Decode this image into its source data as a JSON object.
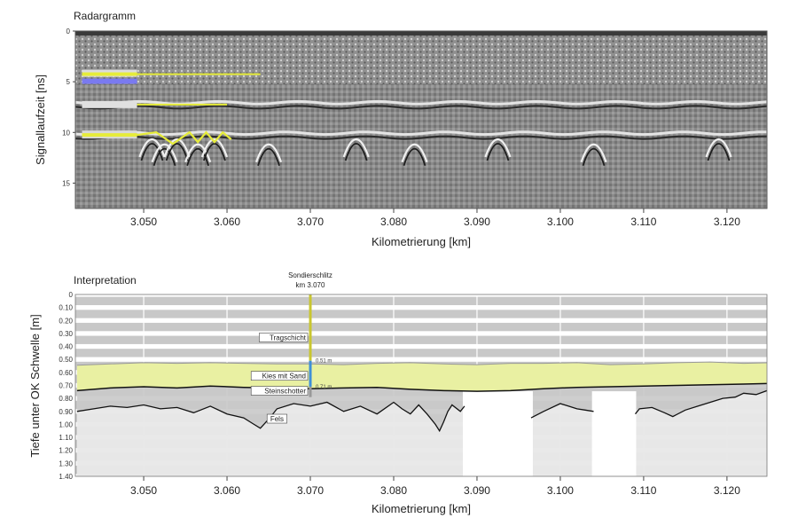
{
  "chart_data": [
    {
      "type": "heatmap",
      "title": "Radargramm",
      "xlabel": "Kilometrierung [km]",
      "ylabel": "Signallaufzeit [ns]",
      "xlim": [
        3.0418,
        3.1248
      ],
      "x_ticks": [
        "3.050",
        "3.060",
        "3.070",
        "3.080",
        "3.090",
        "3.100",
        "3.110",
        "3.120"
      ],
      "x_tick_values": [
        3.05,
        3.06,
        3.07,
        3.08,
        3.09,
        3.1,
        3.11,
        3.12
      ],
      "ylim": [
        0,
        35
      ],
      "y_ticks": [
        "0",
        "5",
        "10",
        "15"
      ],
      "y_tick_values": [
        0,
        10,
        20,
        30
      ],
      "colormap": "grayscale",
      "reflectors": [
        {
          "name": "upper",
          "depth": 14.5
        },
        {
          "name": "lower",
          "depth": 20.5
        }
      ],
      "hyperbolas": [
        3.051,
        3.0525,
        3.054,
        3.0565,
        3.0585,
        3.065,
        3.0755,
        3.0825,
        3.0925,
        3.104,
        3.119
      ],
      "colors": {
        "highlight_yellow": "#e6ec3a",
        "highlight_blue": "#7a7af0"
      }
    },
    {
      "type": "area",
      "title": "Interpretation",
      "xlabel": "Kilometrierung [km]",
      "ylabel": "Tiefe unter OK Schwelle [m]",
      "xlim": [
        3.0418,
        3.1248
      ],
      "x_ticks": [
        "3.050",
        "3.060",
        "3.070",
        "3.080",
        "3.090",
        "3.100",
        "3.110",
        "3.120"
      ],
      "x_tick_values": [
        3.05,
        3.06,
        3.07,
        3.08,
        3.09,
        3.1,
        3.11,
        3.12
      ],
      "ylim": [
        0,
        1.4
      ],
      "y_ticks": [
        "0",
        "0.10",
        "0.20",
        "0.30",
        "0.40",
        "0.50",
        "0.60",
        "0.70",
        "0.80",
        "0.90",
        "1.00",
        "1.10",
        "1.20",
        "1.30",
        "1.40"
      ],
      "y_tick_values": [
        0,
        0.1,
        0.2,
        0.3,
        0.4,
        0.5,
        0.6,
        0.7,
        0.8,
        0.9,
        1.0,
        1.1,
        1.2,
        1.3,
        1.4
      ],
      "grid": true,
      "kies_top": {
        "x": [
          3.042,
          3.046,
          3.05,
          3.054,
          3.058,
          3.062,
          3.066,
          3.07,
          3.074,
          3.078,
          3.082,
          3.086,
          3.09,
          3.094,
          3.098,
          3.102,
          3.106,
          3.11,
          3.114,
          3.118,
          3.122,
          3.125
        ],
        "y": [
          0.545,
          0.535,
          0.525,
          0.53,
          0.525,
          0.53,
          0.535,
          0.535,
          0.54,
          0.53,
          0.525,
          0.535,
          0.54,
          0.53,
          0.53,
          0.525,
          0.54,
          0.535,
          0.525,
          0.52,
          0.53,
          0.525
        ]
      },
      "kies_bottom": {
        "x": [
          3.042,
          3.046,
          3.05,
          3.054,
          3.058,
          3.062,
          3.066,
          3.07,
          3.074,
          3.078,
          3.082,
          3.086,
          3.09,
          3.094,
          3.098,
          3.102,
          3.106,
          3.11,
          3.114,
          3.118,
          3.122,
          3.125
        ],
        "y": [
          0.74,
          0.72,
          0.71,
          0.72,
          0.705,
          0.715,
          0.72,
          0.725,
          0.72,
          0.715,
          0.73,
          0.74,
          0.745,
          0.74,
          0.725,
          0.715,
          0.71,
          0.705,
          0.7,
          0.695,
          0.69,
          0.685
        ]
      },
      "tragschicht_bottom": {
        "x": [
          3.042,
          3.044,
          3.046,
          3.048,
          3.05,
          3.052,
          3.054,
          3.056,
          3.058,
          3.06,
          3.062,
          3.063,
          3.064,
          3.065,
          3.066,
          3.068,
          3.07,
          3.072,
          3.074,
          3.076,
          3.078,
          3.08,
          3.081,
          3.082,
          3.083,
          3.084,
          3.085,
          3.0855,
          3.086,
          3.0865,
          3.087,
          3.088,
          3.0885
        ],
        "y": [
          0.9,
          0.88,
          0.86,
          0.87,
          0.85,
          0.88,
          0.87,
          0.91,
          0.86,
          0.92,
          0.95,
          0.99,
          1.03,
          0.96,
          0.88,
          0.84,
          0.86,
          0.83,
          0.9,
          0.86,
          0.92,
          0.83,
          0.88,
          0.92,
          0.85,
          0.92,
          1.0,
          1.05,
          0.98,
          0.9,
          0.85,
          0.9,
          0.86
        ]
      },
      "tragschicht_bottom_segments": [
        {
          "x": [
            3.0965,
            3.098,
            3.1,
            3.101,
            3.102,
            3.103,
            3.104
          ],
          "y": [
            0.95,
            0.9,
            0.84,
            0.86,
            0.88,
            0.89,
            0.9
          ]
        },
        {
          "x": [
            3.109,
            3.1095,
            3.111,
            3.1125,
            3.1135,
            3.115,
            3.1165,
            3.118,
            3.1195,
            3.121,
            3.122,
            3.1235,
            3.1248
          ],
          "y": [
            0.92,
            0.88,
            0.87,
            0.91,
            0.94,
            0.89,
            0.86,
            0.83,
            0.8,
            0.79,
            0.76,
            0.77,
            0.74
          ]
        }
      ],
      "no_data": [
        [
          3.0883,
          3.0967
        ],
        [
          3.1038,
          3.1091
        ]
      ],
      "borehole": {
        "x": 3.07,
        "label": "Sondierschlitz",
        "sublabel": "km 3.070"
      },
      "borehole_depth_labels": [
        "0.51 m",
        "0.71 m"
      ],
      "borehole_depth_values": [
        0.51,
        0.71
      ],
      "layer_labels": [
        "Tragschicht",
        "Kies mit Sand",
        "Steinschotter",
        "Fels"
      ],
      "colors": {
        "tragschicht": "#c9c9c9",
        "kies": "#e9f0a2",
        "grid_band": "#c8c8c8",
        "boundary": "#111111",
        "borehole_yellow": "#c9c630",
        "borehole_blue": "#3f8fd8"
      }
    }
  ]
}
